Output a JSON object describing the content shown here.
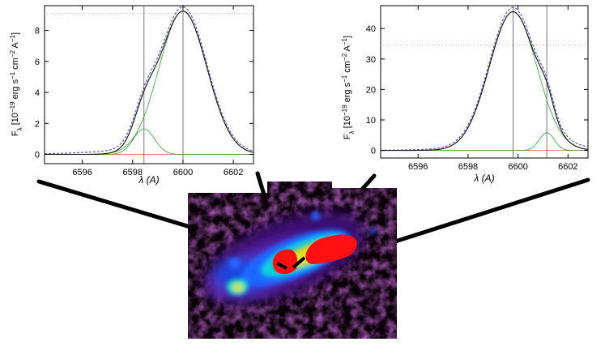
{
  "chart_data": [
    {
      "type": "line",
      "panel": "left",
      "xlabel": "λ (A)",
      "ylabel_main": "F",
      "ylabel_sub": "λ",
      "ylabel_rest": " [10",
      "ylabel_exp1": "−19",
      "ylabel_mid": " erg s",
      "ylabel_exp2": "−1",
      "ylabel_mid2": " cm",
      "ylabel_exp3": "−2",
      "ylabel_mid3": " A",
      "ylabel_exp4": "−1",
      "ylabel_end": "]",
      "xlim": [
        6594.5,
        6602.8
      ],
      "ylim": [
        -0.6,
        9.6
      ],
      "xticks": [
        6596,
        6598,
        6600,
        6602
      ],
      "yticks": [
        0,
        2,
        4,
        6,
        8
      ],
      "vlines": [
        6598.45,
        6600.0
      ],
      "hline_dotted": 9.1,
      "components": [
        {
          "name": "",
          "role": "component",
          "color": "#3a9a3a",
          "center": 6598.45,
          "amp": 1.65,
          "sigma": 0.42
        },
        {
          "name": "",
          "role": "component",
          "color": "#3a9a3a",
          "center": 6600.0,
          "amp": 9.25,
          "sigma": 0.95
        }
      ],
      "baseline": {
        "value": 0.0,
        "color": "#e05050"
      },
      "observed_color": "#5a5ab4",
      "model_color": "#111111"
    },
    {
      "type": "line",
      "panel": "right",
      "xlabel": "λ (A)",
      "ylabel_main": "F",
      "ylabel_sub": "λ",
      "ylabel_rest": " [10",
      "ylabel_exp1": "−19",
      "ylabel_mid": " erg s",
      "ylabel_exp2": "−1",
      "ylabel_mid2": " cm",
      "ylabel_exp3": "−2",
      "ylabel_mid3": " A",
      "ylabel_exp4": "−1",
      "ylabel_end": "]",
      "xlim": [
        6594.5,
        6602.8
      ],
      "ylim": [
        -2.5,
        47.5
      ],
      "xticks": [
        6596,
        6598,
        6600,
        6602
      ],
      "yticks": [
        0,
        10,
        20,
        30,
        40
      ],
      "vlines": [
        6599.8,
        6601.15
      ],
      "hline_dotted": 34.5,
      "components": [
        {
          "name": "",
          "role": "component",
          "color": "#3a9a3a",
          "center": 6599.8,
          "amp": 45.5,
          "sigma": 0.95
        },
        {
          "name": "",
          "role": "component",
          "color": "#3a9a3a",
          "center": 6601.15,
          "amp": 5.8,
          "sigma": 0.3
        }
      ],
      "baseline": {
        "value": 0.0,
        "color": "#e05050"
      },
      "observed_color": "#5a5ab4",
      "model_color": "#111111"
    }
  ],
  "colors": {
    "image_background": "#0a0008",
    "connector_lines": "#000000"
  }
}
